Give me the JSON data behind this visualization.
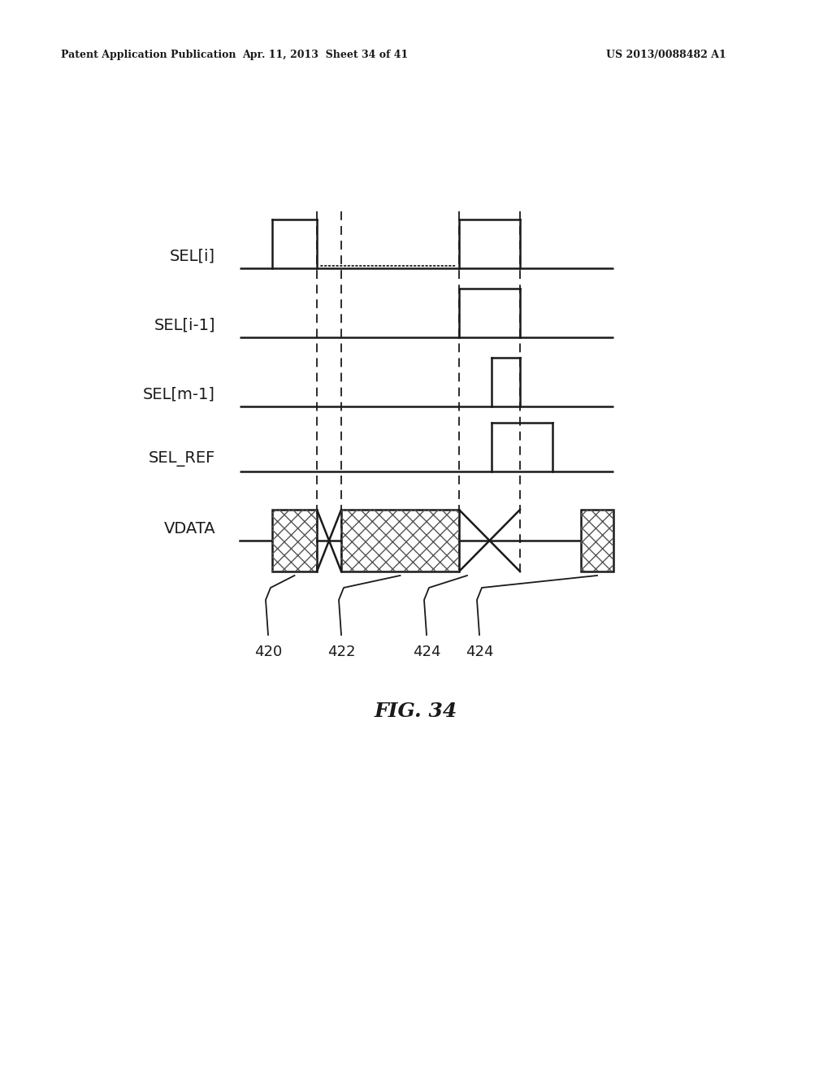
{
  "header_left": "Patent Application Publication",
  "header_mid": "Apr. 11, 2013  Sheet 34 of 41",
  "header_right": "US 2013/0088482 A1",
  "signals": [
    "SEL[i]",
    "SEL[i-1]",
    "SEL[m-1]",
    "SEL_REF",
    "VDATA"
  ],
  "figure_label": "FIG. 34",
  "background_color": "#ffffff",
  "line_color": "#1a1a1a",
  "annot_labels": [
    "420",
    "422",
    "424",
    "424"
  ]
}
